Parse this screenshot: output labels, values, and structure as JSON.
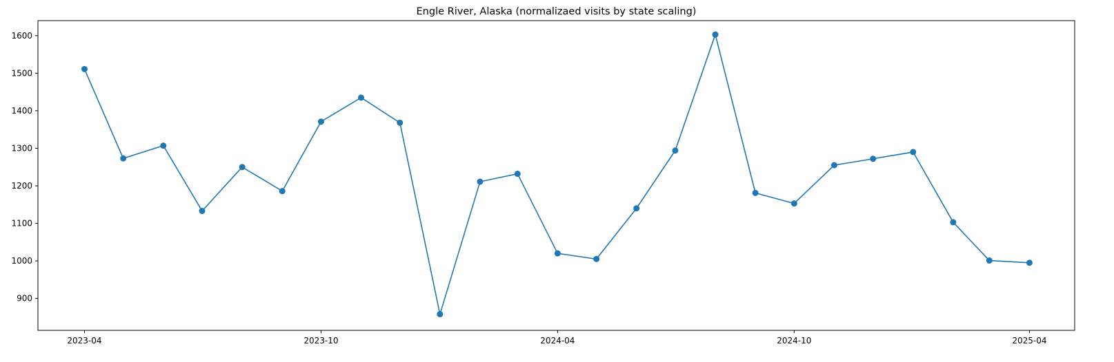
{
  "chart_data": {
    "type": "line",
    "title": "Engle River, Alaska (normalizaed visits by state scaling)",
    "xlabel": "",
    "ylabel": "",
    "x": [
      "2023-04-01",
      "2023-05-01",
      "2023-06-01",
      "2023-07-01",
      "2023-08-01",
      "2023-09-01",
      "2023-10-01",
      "2023-11-01",
      "2023-12-01",
      "2024-01-01",
      "2024-02-01",
      "2024-03-01",
      "2024-04-01",
      "2024-05-01",
      "2024-06-01",
      "2024-07-01",
      "2024-08-01",
      "2024-09-01",
      "2024-10-01",
      "2024-11-01",
      "2024-12-01",
      "2025-01-01",
      "2025-02-01",
      "2025-03-01",
      "2025-04-01"
    ],
    "series": [
      {
        "values": [
          1511,
          1273,
          1307,
          1133,
          1250,
          1186,
          1371,
          1435,
          1368,
          858,
          1211,
          1232,
          1020,
          1005,
          1140,
          1294,
          1603,
          1181,
          1153,
          1255,
          1272,
          1290,
          1103,
          1001,
          995
        ],
        "color": "#1f77b4"
      }
    ],
    "xticks": [
      "2023-04",
      "2023-10",
      "2024-04",
      "2024-10",
      "2025-04"
    ],
    "yticks": [
      900,
      1000,
      1100,
      1200,
      1300,
      1400,
      1500,
      1600
    ],
    "ylim": [
      815,
      1640
    ],
    "xlim": [
      "2023-02-24",
      "2025-05-06"
    ],
    "grid": false,
    "marker": "circle"
  }
}
